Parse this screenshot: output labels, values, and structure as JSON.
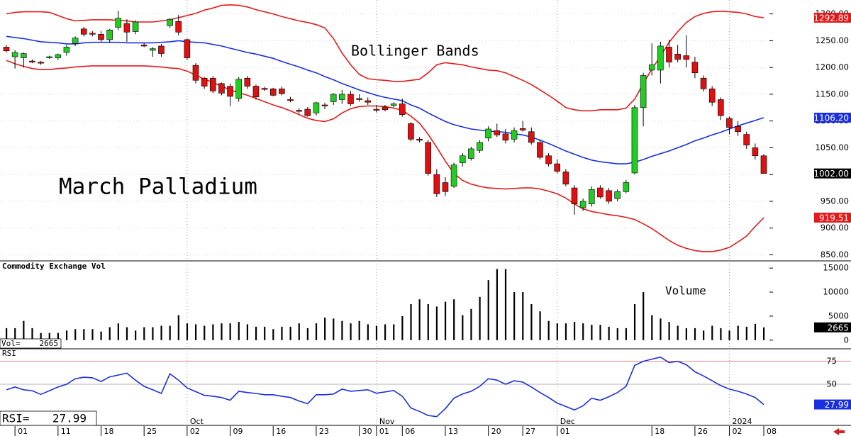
{
  "x_axis": {
    "categories": [
      null,
      "01",
      null,
      null,
      null,
      null,
      "11",
      null,
      null,
      null,
      null,
      "18",
      null,
      null,
      null,
      null,
      "25",
      null,
      null,
      null,
      null,
      "02",
      null,
      null,
      null,
      null,
      "09",
      null,
      null,
      null,
      null,
      "16",
      null,
      null,
      null,
      null,
      "23",
      null,
      null,
      null,
      null,
      "30",
      null,
      "01",
      null,
      null,
      "06",
      null,
      null,
      null,
      null,
      "13",
      null,
      null,
      null,
      null,
      "20",
      null,
      null,
      null,
      "27",
      null,
      null,
      null,
      "01",
      null,
      null,
      null,
      null,
      null,
      null,
      null,
      null,
      null,
      null,
      "18",
      null,
      null,
      null,
      null,
      "26",
      null,
      null,
      null,
      "02",
      null,
      null,
      null,
      "08"
    ],
    "groups": [
      null,
      null,
      null,
      null,
      null,
      null,
      null,
      null,
      null,
      null,
      null,
      null,
      null,
      null,
      null,
      null,
      null,
      null,
      null,
      null,
      null,
      "Oct",
      null,
      null,
      null,
      null,
      null,
      null,
      null,
      null,
      null,
      null,
      null,
      null,
      null,
      null,
      null,
      null,
      null,
      null,
      null,
      null,
      null,
      "Nov",
      null,
      null,
      null,
      null,
      null,
      null,
      null,
      null,
      null,
      null,
      null,
      null,
      null,
      null,
      null,
      null,
      null,
      null,
      null,
      null,
      "Dec",
      null,
      null,
      null,
      null,
      null,
      null,
      null,
      null,
      null,
      null,
      null,
      null,
      null,
      null,
      null,
      null,
      null,
      null,
      null,
      "2024",
      null,
      null,
      null,
      null
    ]
  },
  "chart_data": [
    {
      "type": "candlestick",
      "title": "March Palladium",
      "annotation": "Bollinger Bands",
      "up_color": "#22cc22",
      "down_color": "#dd1111",
      "close_label": "1002.00",
      "grid": true,
      "ylim": [
        840,
        1326
      ],
      "yticks": [
        {
          "value": 1300,
          "label": "1300.00"
        },
        {
          "value": 1250,
          "label": "1250.00"
        },
        {
          "value": 1200,
          "label": "1200.00"
        },
        {
          "value": 1150,
          "label": "1150.00"
        },
        {
          "value": 1100,
          "label": "1100.00"
        },
        {
          "value": 1050,
          "label": "1050.00"
        },
        {
          "value": 1000,
          "label": "1000.00"
        },
        {
          "value": 950,
          "label": "950.00"
        },
        {
          "value": 900,
          "label": "900.00"
        },
        {
          "value": 850,
          "label": "850.00"
        }
      ],
      "open": [
        1238,
        1220,
        1218,
        1212,
        1210,
        1218,
        1218,
        1228,
        1245,
        1272,
        1264,
        1262,
        1252,
        1275,
        1282,
        1267,
        1242,
        1232,
        1240,
        1278,
        1286,
        1252,
        1204,
        1180,
        1180,
        1170,
        1165,
        1142,
        1180,
        1165,
        1161,
        1160,
        1160,
        1140,
        1120,
        1122,
        1115,
        1130,
        1136,
        1140,
        1150,
        1142,
        1138,
        1122,
        1126,
        1129,
        1132,
        1095,
        1066,
        1060,
        1000,
        985,
        978,
        1022,
        1030,
        1045,
        1068,
        1082,
        1076,
        1066,
        1086,
        1080,
        1060,
        1035,
        1020,
        1005,
        975,
        938,
        945,
        975,
        970,
        955,
        968,
        1003,
        1125,
        1195,
        1195,
        1238,
        1225,
        1222,
        1210,
        1180,
        1160,
        1140,
        1105,
        1090,
        1075,
        1050,
        1035
      ],
      "high": [
        1242,
        1232,
        1228,
        1215,
        1212,
        1222,
        1226,
        1242,
        1258,
        1276,
        1268,
        1268,
        1272,
        1306,
        1290,
        1288,
        1246,
        1238,
        1244,
        1292,
        1298,
        1254,
        1208,
        1182,
        1184,
        1172,
        1170,
        1182,
        1184,
        1168,
        1164,
        1162,
        1164,
        1145,
        1124,
        1126,
        1136,
        1134,
        1152,
        1158,
        1156,
        1150,
        1144,
        1130,
        1130,
        1135,
        1142,
        1098,
        1070,
        1065,
        1010,
        995,
        1022,
        1040,
        1052,
        1064,
        1090,
        1095,
        1085,
        1088,
        1100,
        1088,
        1066,
        1040,
        1028,
        1010,
        980,
        955,
        978,
        980,
        975,
        972,
        990,
        1130,
        1190,
        1245,
        1248,
        1252,
        1242,
        1260,
        1220,
        1185,
        1165,
        1144,
        1108,
        1100,
        1080,
        1058,
        1038
      ],
      "low": [
        1228,
        1198,
        1200,
        1208,
        1205,
        1216,
        1214,
        1222,
        1240,
        1258,
        1258,
        1248,
        1246,
        1270,
        1248,
        1262,
        1238,
        1220,
        1220,
        1274,
        1260,
        1214,
        1170,
        1160,
        1152,
        1148,
        1128,
        1136,
        1160,
        1140,
        1156,
        1146,
        1148,
        1135,
        1114,
        1108,
        1110,
        1122,
        1130,
        1132,
        1128,
        1136,
        1130,
        1116,
        1118,
        1125,
        1108,
        1062,
        1060,
        998,
        958,
        960,
        975,
        1015,
        1026,
        1040,
        1062,
        1070,
        1058,
        1060,
        1080,
        1056,
        1028,
        1015,
        1002,
        978,
        925,
        932,
        940,
        955,
        945,
        950,
        965,
        1000,
        1090,
        1185,
        1170,
        1200,
        1210,
        1200,
        1180,
        1155,
        1128,
        1102,
        1075,
        1072,
        1048,
        1028,
        1002
      ],
      "close": [
        1231,
        1228,
        1226,
        1210,
        1208,
        1220,
        1224,
        1238,
        1255,
        1262,
        1262,
        1252,
        1270,
        1292,
        1266,
        1285,
        1240,
        1235,
        1226,
        1290,
        1266,
        1218,
        1176,
        1165,
        1156,
        1152,
        1146,
        1178,
        1165,
        1145,
        1159,
        1148,
        1151,
        1138,
        1118,
        1110,
        1134,
        1128,
        1150,
        1150,
        1132,
        1140,
        1135,
        1120,
        1121,
        1132,
        1112,
        1066,
        1064,
        1002,
        964,
        968,
        1018,
        1035,
        1048,
        1060,
        1085,
        1074,
        1064,
        1082,
        1083,
        1060,
        1032,
        1020,
        1006,
        982,
        945,
        950,
        972,
        958,
        950,
        968,
        985,
        1125,
        1185,
        1205,
        1240,
        1210,
        1215,
        1215,
        1190,
        1160,
        1135,
        1110,
        1088,
        1080,
        1055,
        1035,
        1002
      ],
      "bands": [
        {
          "color": "#e41a1a",
          "end_label": "1292.89",
          "values": [
            1300,
            1303,
            1304,
            1304,
            1304,
            1303,
            1297,
            1291,
            1287,
            1288,
            1289,
            1289,
            1289,
            1288,
            1287,
            1285,
            1285,
            1285,
            1287,
            1289,
            1293,
            1297,
            1301,
            1307,
            1311,
            1316,
            1317,
            1316,
            1313,
            1308,
            1304,
            1300,
            1295,
            1291,
            1287,
            1284,
            1280,
            1274,
            1254,
            1227,
            1205,
            1187,
            1179,
            1177,
            1176,
            1174,
            1174,
            1176,
            1178,
            1190,
            1205,
            1209,
            1207,
            1205,
            1201,
            1198,
            1195,
            1194,
            1190,
            1183,
            1176,
            1168,
            1158,
            1148,
            1137,
            1125,
            1121,
            1119,
            1119,
            1121,
            1121,
            1121,
            1124,
            1141,
            1170,
            1197,
            1221,
            1247,
            1267,
            1284,
            1295,
            1301,
            1304,
            1305,
            1304,
            1303,
            1300,
            1295,
            1292.89
          ]
        },
        {
          "color": "#1a2fe0",
          "end_label": "1106.20",
          "values": [
            1258,
            1256,
            1254,
            1251,
            1248,
            1247,
            1246,
            1244,
            1244,
            1246,
            1247,
            1247,
            1247,
            1247,
            1246,
            1246,
            1246,
            1246,
            1247,
            1248,
            1250,
            1248,
            1247,
            1246,
            1243,
            1240,
            1236,
            1232,
            1228,
            1225,
            1221,
            1217,
            1211,
            1206,
            1201,
            1195,
            1190,
            1183,
            1177,
            1170,
            1164,
            1158,
            1153,
            1148,
            1144,
            1141,
            1138,
            1130,
            1124,
            1115,
            1107,
            1099,
            1093,
            1089,
            1085,
            1083,
            1081,
            1080,
            1079,
            1076,
            1074,
            1070,
            1064,
            1058,
            1051,
            1044,
            1038,
            1032,
            1027,
            1024,
            1022,
            1020,
            1020,
            1023,
            1028,
            1034,
            1039,
            1044,
            1050,
            1056,
            1063,
            1068,
            1074,
            1079,
            1085,
            1091,
            1096,
            1101,
            1106.2
          ]
        },
        {
          "color": "#e41a1a",
          "end_label": "919.51",
          "values": [
            1213,
            1207,
            1202,
            1198,
            1196,
            1196,
            1198,
            1199,
            1201,
            1202,
            1203,
            1203,
            1203,
            1203,
            1203,
            1203,
            1203,
            1202,
            1201,
            1199,
            1198,
            1193,
            1186,
            1178,
            1172,
            1165,
            1158,
            1153,
            1148,
            1142,
            1136,
            1130,
            1125,
            1119,
            1112,
            1105,
            1101,
            1099,
            1104,
            1115,
            1123,
            1127,
            1128,
            1128,
            1127,
            1124,
            1120,
            1109,
            1096,
            1075,
            1051,
            1025,
            1002,
            989,
            982,
            978,
            975,
            974,
            973,
            974,
            975,
            975,
            973,
            969,
            964,
            956,
            945,
            936,
            931,
            928,
            925,
            923,
            920,
            916,
            908,
            899,
            888,
            877,
            868,
            862,
            858,
            856,
            856,
            859,
            864,
            874,
            885,
            903,
            919.51
          ]
        }
      ]
    },
    {
      "type": "bar",
      "title": "Commodity Exchange Vol",
      "annotation": "Volume",
      "box_label": "Vol=",
      "color": "#000000",
      "ylim": [
        -1500,
        16200
      ],
      "yticks": [
        15000,
        10000,
        5000,
        0
      ],
      "values": [
        2500,
        2500,
        4000,
        2500,
        1500,
        1500,
        1500,
        2000,
        2300,
        2300,
        2300,
        1800,
        2700,
        3500,
        2700,
        2000,
        2700,
        2700,
        3000,
        3000,
        5200,
        3500,
        3300,
        3000,
        3300,
        3500,
        3500,
        3800,
        3300,
        2800,
        2800,
        2300,
        2800,
        2800,
        3500,
        2500,
        3500,
        4700,
        4500,
        4000,
        3500,
        4000,
        3300,
        3000,
        3300,
        3300,
        5000,
        7500,
        8500,
        7500,
        7000,
        8000,
        8500,
        5200,
        6500,
        9000,
        12500,
        14800,
        14800,
        10000,
        10000,
        7500,
        6000,
        4000,
        3500,
        3500,
        3800,
        3500,
        3200,
        3200,
        2800,
        2500,
        2500,
        7500,
        10000,
        5200,
        4500,
        3800,
        3000,
        2500,
        2500,
        2000,
        3000,
        2500,
        2000,
        3000,
        2800,
        3400,
        2665
      ]
    },
    {
      "type": "line",
      "title": "RSI",
      "box_label": "RSI=",
      "color": "#1a2fe0",
      "ylim": [
        13,
        87
      ],
      "yticks": [
        75,
        50
      ],
      "level_colors": [
        "#ff7070",
        "#999999"
      ],
      "values": [
        43.9,
        47,
        44,
        43,
        39,
        43,
        47,
        50,
        56,
        57.6,
        57,
        53,
        58,
        60,
        62,
        54.5,
        47.7,
        44,
        40,
        61.4,
        54.5,
        46,
        42,
        38,
        37,
        35.6,
        32.6,
        42.4,
        41,
        40,
        38.6,
        38.6,
        37,
        35.6,
        31.8,
        28.8,
        38.6,
        38.6,
        39.4,
        44.7,
        42.4,
        43.2,
        44,
        40.2,
        41.7,
        43.2,
        37,
        24.2,
        20.5,
        16,
        14.8,
        23.5,
        34.8,
        39.4,
        42.4,
        47.7,
        56,
        54.5,
        50,
        53.8,
        52.3,
        47,
        41,
        35.6,
        29.5,
        25.8,
        22,
        26.5,
        34.8,
        32.6,
        36.4,
        41,
        47.7,
        70.5,
        75,
        77.3,
        79.5,
        73.5,
        75,
        71.2,
        63.6,
        59,
        53.8,
        48.5,
        44.7,
        42.4,
        39.4,
        35.6,
        27.99
      ]
    }
  ]
}
